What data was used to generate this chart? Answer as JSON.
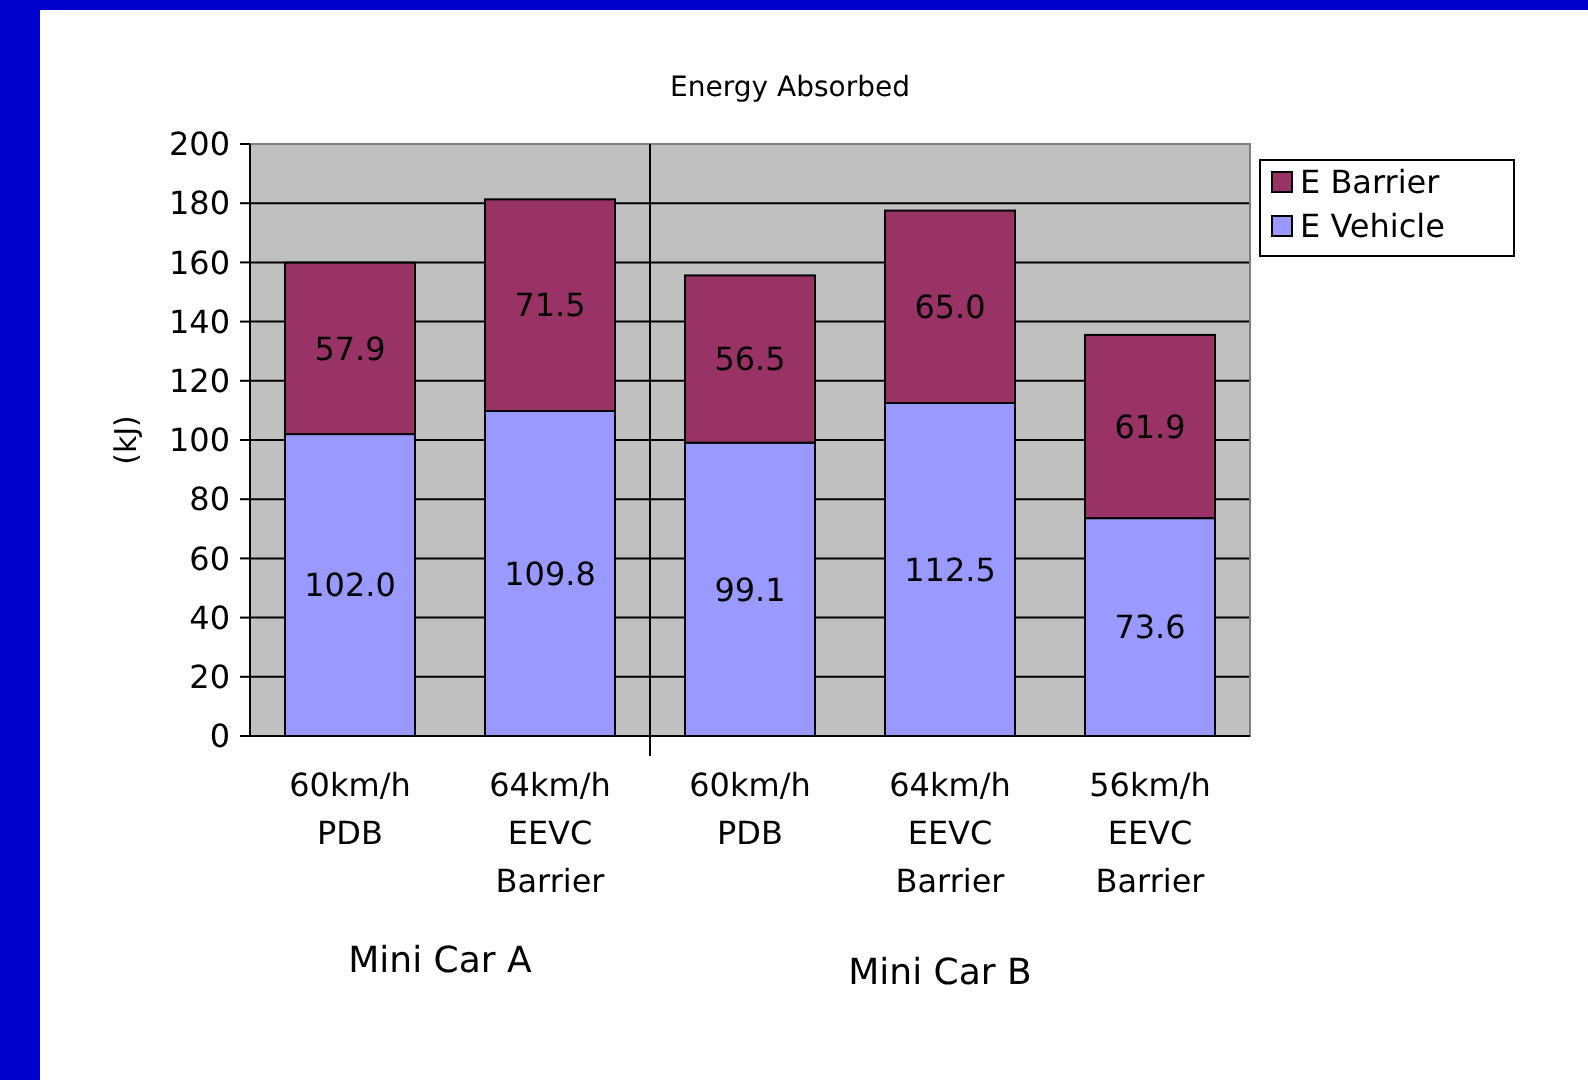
{
  "chart_data": {
    "type": "bar",
    "title": "Energy Absorbed",
    "ylabel": "(kJ)",
    "stacked": true,
    "categories": [
      "60km/h\nPDB",
      "64km/h\nEEVC\nBarrier",
      "60km/h\nPDB",
      "64km/h\nEEVC\nBarrier",
      "56km/h\nEEVC\nBarrier"
    ],
    "series": [
      {
        "name": "E Vehicle",
        "color": "#9999ff",
        "values": [
          102.0,
          109.8,
          99.1,
          112.5,
          73.6
        ],
        "value_labels": [
          "102.0",
          "109.8",
          "99.1",
          "112.5",
          "73.6"
        ]
      },
      {
        "name": "E Barrier",
        "color": "#993366",
        "values": [
          57.9,
          71.5,
          56.5,
          65.0,
          61.9
        ],
        "value_labels": [
          "57.9",
          "71.5",
          "56.5",
          "65.0",
          "61.9"
        ]
      }
    ],
    "ylim": [
      0,
      200
    ],
    "yticks": [
      0,
      20,
      40,
      60,
      80,
      100,
      120,
      140,
      160,
      180,
      200
    ],
    "grid": "y",
    "legend": "top right",
    "annotations": [
      "Mini Car A",
      "Mini Car B"
    ]
  }
}
